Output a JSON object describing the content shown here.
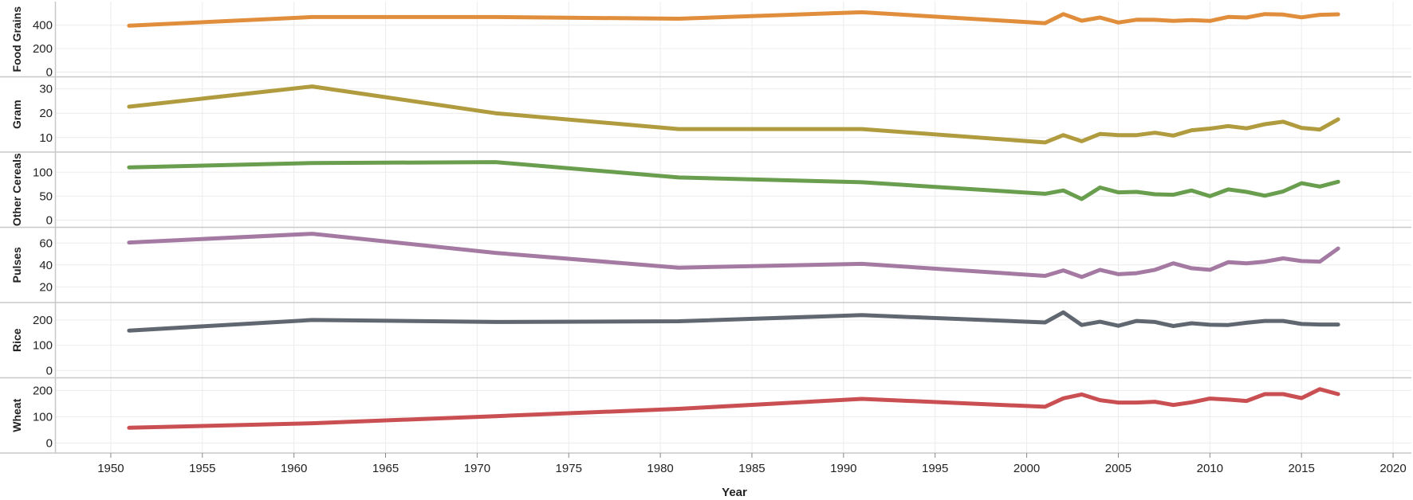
{
  "chart_data": {
    "type": "line",
    "xlabel": "Year",
    "xlim": [
      1947,
      2021
    ],
    "xticks": [
      1950,
      1955,
      1960,
      1965,
      1970,
      1975,
      1980,
      1985,
      1990,
      1995,
      2000,
      2005,
      2010,
      2015,
      2020
    ],
    "x": [
      1951,
      1961,
      1971,
      1981,
      1991,
      2001,
      2002,
      2003,
      2004,
      2005,
      2006,
      2007,
      2008,
      2009,
      2010,
      2011,
      2012,
      2013,
      2014,
      2015,
      2016,
      2017
    ],
    "grid": true,
    "panels": [
      {
        "name": "Food Grains",
        "color": "#e08e3c",
        "ylim": [
          0,
          560
        ],
        "yticks": [
          0,
          200,
          400
        ],
        "values": [
          395,
          469,
          469,
          455,
          510,
          417,
          494,
          438,
          465,
          422,
          446,
          445,
          436,
          443,
          436,
          470,
          465,
          494,
          490,
          466,
          488,
          492
        ]
      },
      {
        "name": "Gram",
        "color": "#b09b3e",
        "ylim": [
          6,
          33
        ],
        "yticks": [
          10,
          20,
          30
        ],
        "values": [
          22.7,
          31,
          20,
          13.5,
          13.5,
          8,
          11,
          8.5,
          11.5,
          11,
          11,
          12,
          10.8,
          13,
          13.7,
          14.7,
          13.8,
          15.5,
          16.5,
          14,
          13.3,
          17.5
        ]
      },
      {
        "name": "Other Cereals",
        "color": "#6a9e4f",
        "ylim": [
          -5,
          132
        ],
        "yticks": [
          0,
          50,
          100
        ],
        "values": [
          110,
          119,
          121,
          89,
          79,
          55,
          62,
          44,
          68,
          58,
          59,
          54,
          53,
          62,
          50,
          64,
          59,
          51,
          60,
          77,
          70,
          80
        ]
      },
      {
        "name": "Pulses",
        "color": "#a47aa3",
        "ylim": [
          10,
          70
        ],
        "yticks": [
          20,
          40,
          60
        ],
        "values": [
          60.5,
          68.5,
          51,
          37.5,
          41,
          30,
          35,
          29,
          35.5,
          31.5,
          32.5,
          35.5,
          41.5,
          37,
          35.5,
          42.5,
          41.5,
          43,
          46,
          43.5,
          43,
          55
        ]
      },
      {
        "name": "Rice",
        "color": "#616770",
        "ylim": [
          -10,
          250
        ],
        "yticks": [
          0,
          100,
          200
        ],
        "values": [
          158,
          200,
          192,
          195,
          219,
          190,
          230,
          180,
          193,
          177,
          196,
          192,
          176,
          187,
          181,
          180,
          189,
          196,
          196,
          184,
          182,
          182
        ]
      },
      {
        "name": "Wheat",
        "color": "#c94f52",
        "ylim": [
          -20,
          230
        ],
        "yticks": [
          0,
          100,
          200
        ],
        "values": [
          58,
          75,
          102,
          130,
          168,
          138,
          170,
          185,
          163,
          154,
          154,
          157,
          145,
          155,
          169,
          165,
          160,
          186,
          186,
          171,
          205,
          186
        ]
      }
    ]
  }
}
